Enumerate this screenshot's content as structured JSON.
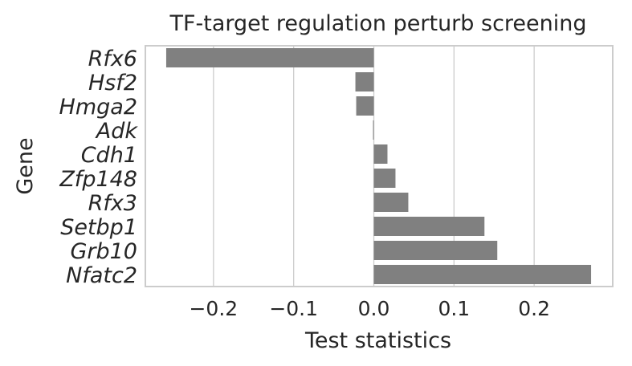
{
  "chart_data": {
    "type": "bar",
    "orientation": "horizontal",
    "title": "TF-target regulation perturb screening",
    "xlabel": "Test statistics",
    "ylabel": "Gene",
    "categories": [
      "Rfx6",
      "Hsf2",
      "Hmga2",
      "Adk",
      "Cdh1",
      "Zfp148",
      "Rfx3",
      "Setbp1",
      "Grb10",
      "Nfatc2"
    ],
    "values": [
      -0.259,
      -0.023,
      -0.022,
      -0.001,
      0.017,
      0.027,
      0.043,
      0.138,
      0.154,
      0.271
    ],
    "xlim": [
      -0.285,
      0.298
    ],
    "xticks": [
      -0.2,
      -0.1,
      0.0,
      0.1,
      0.2
    ],
    "xtick_labels": [
      "−0.2",
      "−0.1",
      "0.0",
      "0.1",
      "0.2"
    ],
    "bar_color": "#808080",
    "grid": "vertical",
    "legend": "none"
  }
}
